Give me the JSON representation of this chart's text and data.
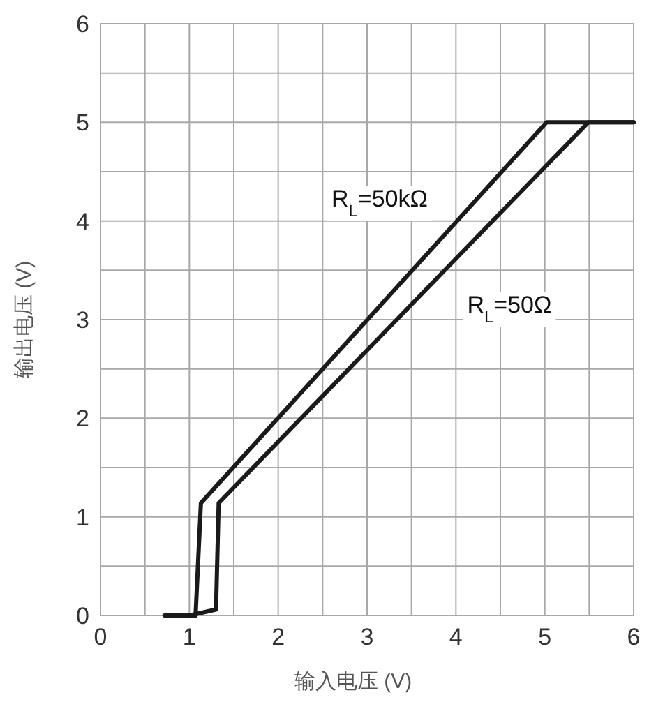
{
  "chart_data": {
    "type": "line",
    "xlabel": "输入电压 (V)",
    "ylabel": "输出电压 (V)",
    "xlim": [
      0,
      6
    ],
    "ylim": [
      0,
      6
    ],
    "xticks": [
      0,
      1,
      2,
      3,
      4,
      5,
      6
    ],
    "yticks": [
      0,
      1,
      2,
      3,
      4,
      5,
      6
    ],
    "grid": true,
    "line_style": "solid",
    "marker": "none",
    "series": [
      {
        "color": "#1a1a1a",
        "x": [
          0.72,
          1.07,
          1.13,
          5.02,
          6
        ],
        "values": [
          0,
          0,
          1.14,
          5,
          5
        ]
      },
      {
        "color": "#1a1a1a",
        "x": [
          1.0,
          1.3,
          1.33,
          5.49,
          6
        ],
        "values": [
          0,
          0.06,
          1.14,
          5,
          5
        ]
      }
    ],
    "annotations": [
      "R$_{L}$=50kΩ",
      "R$_{L}$=50Ω"
    ]
  }
}
